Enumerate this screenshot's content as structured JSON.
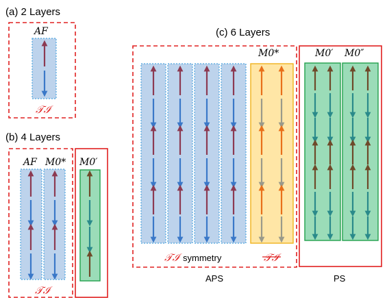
{
  "panels": {
    "a": {
      "title": "(a) 2 Layers",
      "column_label": "AF",
      "bottom_label": "𝒯ℐ"
    },
    "b": {
      "title": "(b) 4 Layers",
      "column_labels": [
        "AF",
        "M0*"
      ],
      "right_label": "M0′",
      "bottom_label": "𝒯ℐ"
    },
    "c": {
      "title": "(c) 6 Layers",
      "yellow_label": "M0*",
      "green_labels": [
        "M0′",
        "M0″"
      ],
      "symmetry_prefix": "𝒯ℐ",
      "symmetry_word": "symmetry",
      "broken_label": "𝒯ℐ",
      "aps_label": "APS",
      "ps_label": "PS"
    }
  },
  "colors": {
    "dashed_frame": "#e02020",
    "solid_frame": "#e02020",
    "blue_fill": "#bdd3ec",
    "blue_border": "#4fa6e0",
    "yellow_fill": "#ffe6a6",
    "yellow_border": "#f0b21e",
    "green_fill": "#9bdcb8",
    "green_border": "#22a04c",
    "arrow_maroon": "#8c3a52",
    "arrow_blue": "#3a78c8",
    "arrow_orange": "#e8701a",
    "arrow_gray": "#9a9a8a",
    "arrow_teal": "#2a8a8a",
    "arrow_brown": "#6e4a2a"
  }
}
